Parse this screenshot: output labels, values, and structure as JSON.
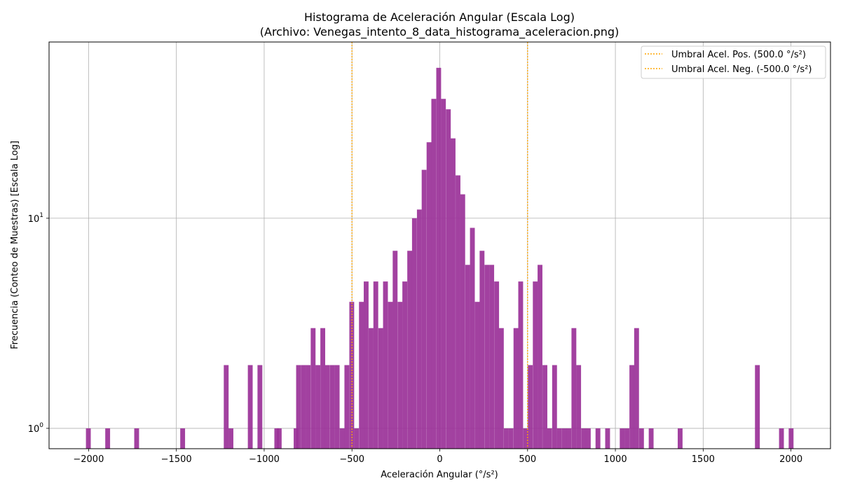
{
  "chart_data": {
    "type": "bar",
    "title": "Histograma de Aceleración Angular (Escala Log)",
    "subtitle": "(Archivo: Venegas_intento_8_data_histograma_aceleracion.png)",
    "xlabel": "Aceleración Angular (°/s²)",
    "ylabel": "Frecuencia (Conteo de Muestras) [Escala Log]",
    "xlim": [
      -2225,
      2225
    ],
    "ylim": [
      0.8,
      69
    ],
    "yscale": "log",
    "grid": true,
    "legend_position": "top-right",
    "bar_color": "#9b3399",
    "threshold_color": "#ffa500",
    "bin_width": 27.5,
    "bins": [
      [
        -2015,
        1
      ],
      [
        -1905,
        1
      ],
      [
        -1740,
        1
      ],
      [
        -1478,
        1
      ],
      [
        -1230,
        2
      ],
      [
        -1203,
        1
      ],
      [
        -1093,
        2
      ],
      [
        -1038,
        2
      ],
      [
        -942,
        1
      ],
      [
        -928,
        1
      ],
      [
        -832,
        1
      ],
      [
        -818,
        2
      ],
      [
        -790,
        2
      ],
      [
        -763,
        2
      ],
      [
        -735,
        3
      ],
      [
        -708,
        2
      ],
      [
        -680,
        3
      ],
      [
        -653,
        2
      ],
      [
        -625,
        2
      ],
      [
        -598,
        2
      ],
      [
        -570,
        1
      ],
      [
        -543,
        2
      ],
      [
        -515,
        4
      ],
      [
        -488,
        1
      ],
      [
        -460,
        4
      ],
      [
        -433,
        5
      ],
      [
        -405,
        3
      ],
      [
        -378,
        5
      ],
      [
        -350,
        3
      ],
      [
        -323,
        5
      ],
      [
        -295,
        4
      ],
      [
        -268,
        7
      ],
      [
        -240,
        4
      ],
      [
        -213,
        5
      ],
      [
        -185,
        7
      ],
      [
        -158,
        10
      ],
      [
        -130,
        11
      ],
      [
        -103,
        17
      ],
      [
        -75,
        23
      ],
      [
        -48,
        37
      ],
      [
        -20,
        52
      ],
      [
        7,
        37
      ],
      [
        35,
        33
      ],
      [
        62,
        24
      ],
      [
        90,
        16
      ],
      [
        117,
        13
      ],
      [
        145,
        6
      ],
      [
        172,
        9
      ],
      [
        200,
        4
      ],
      [
        227,
        7
      ],
      [
        255,
        6
      ],
      [
        282,
        6
      ],
      [
        310,
        5
      ],
      [
        337,
        3
      ],
      [
        365,
        1
      ],
      [
        392,
        1
      ],
      [
        420,
        3
      ],
      [
        447,
        5
      ],
      [
        475,
        1
      ],
      [
        502,
        2
      ],
      [
        530,
        5
      ],
      [
        557,
        6
      ],
      [
        585,
        2
      ],
      [
        612,
        1
      ],
      [
        640,
        2
      ],
      [
        667,
        1
      ],
      [
        695,
        1
      ],
      [
        722,
        1
      ],
      [
        750,
        3
      ],
      [
        777,
        2
      ],
      [
        805,
        1
      ],
      [
        832,
        1
      ],
      [
        887,
        1
      ],
      [
        942,
        1
      ],
      [
        1025,
        1
      ],
      [
        1052,
        1
      ],
      [
        1080,
        2
      ],
      [
        1107,
        3
      ],
      [
        1135,
        1
      ],
      [
        1190,
        1
      ],
      [
        1355,
        1
      ],
      [
        1795,
        2
      ],
      [
        1932,
        1
      ],
      [
        1987,
        1
      ]
    ],
    "xticks": [
      "−2000",
      "−1500",
      "−1000",
      "−500",
      "0",
      "500",
      "1000",
      "1500",
      "2000"
    ],
    "xtick_values": [
      -2000,
      -1500,
      -1000,
      -500,
      0,
      500,
      1000,
      1500,
      2000
    ],
    "yticks": [
      {
        "value": 1,
        "base": "10",
        "exp": "0"
      },
      {
        "value": 10,
        "base": "10",
        "exp": "1"
      }
    ],
    "thresholds": [
      {
        "value": 500,
        "label": "Umbral Acel. Pos. (500.0 °/s²)"
      },
      {
        "value": -500,
        "label": "Umbral Acel. Neg. (-500.0 °/s²)"
      }
    ]
  }
}
